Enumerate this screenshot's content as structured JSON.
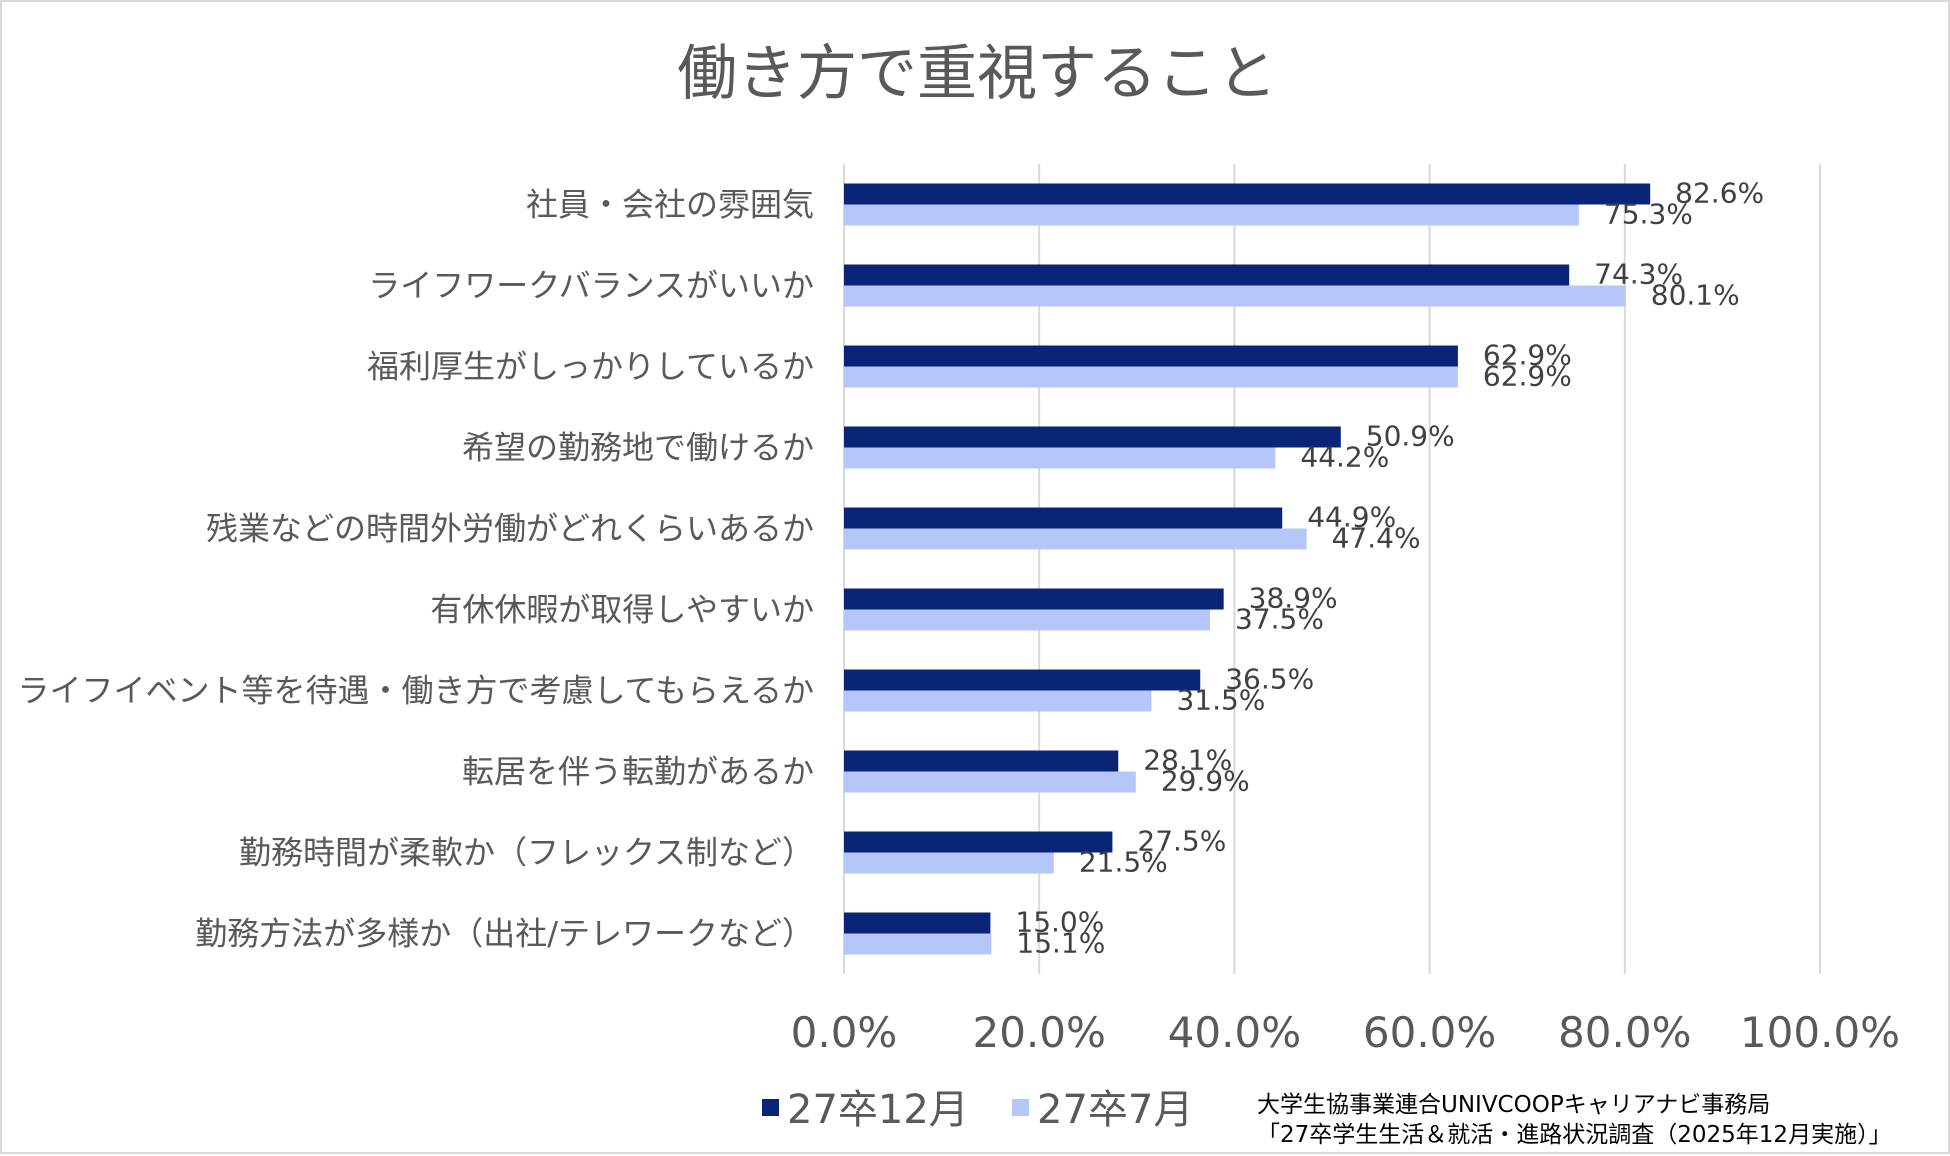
{
  "chart_data": {
    "type": "bar",
    "orientation": "horizontal",
    "title": "働き方で重視すること",
    "categories": [
      "社員・会社の雰囲気",
      "ライフワークバランスがいいか",
      "福利厚生がしっかりしているか",
      "希望の勤務地で働けるか",
      "残業などの時間外労働がどれくらいあるか",
      "有休休暇が取得しやすいか",
      "ライフイベント等を待遇・働き方で考慮してもらえるか",
      "転居を伴う転勤があるか",
      "勤務時間が柔軟か（フレックス制など）",
      "勤務方法が多様か（出社/テレワークなど）"
    ],
    "series": [
      {
        "name": "27卒12月",
        "color": "#0a2478",
        "values": [
          82.6,
          74.3,
          62.9,
          50.9,
          44.9,
          38.9,
          36.5,
          28.1,
          27.5,
          15.0
        ],
        "labels": [
          "82.6%",
          "74.3%",
          "62.9%",
          "50.9%",
          "44.9%",
          "38.9%",
          "36.5%",
          "28.1%",
          "27.5%",
          "15.0%"
        ]
      },
      {
        "name": "27卒7月",
        "color": "#b4c7f8",
        "values": [
          75.3,
          80.1,
          62.9,
          44.2,
          47.4,
          37.5,
          31.5,
          29.9,
          21.5,
          15.1
        ],
        "labels": [
          "75.3%",
          "80.1%",
          "62.9%",
          "44.2%",
          "47.4%",
          "37.5%",
          "31.5%",
          "29.9%",
          "21.5%",
          "15.1%"
        ]
      }
    ],
    "xlim": [
      0,
      100
    ],
    "xticks": [
      "0.0%",
      "20.0%",
      "40.0%",
      "60.0%",
      "80.0%",
      "100.0%"
    ],
    "grid": true,
    "legend_position": "bottom"
  },
  "source": {
    "line1": "大学生協事業連合UNIVCOOPキャリアナビ事務局",
    "line2": "「27卒学生生活＆就活・進路状況調査（2025年12月実施）」"
  }
}
